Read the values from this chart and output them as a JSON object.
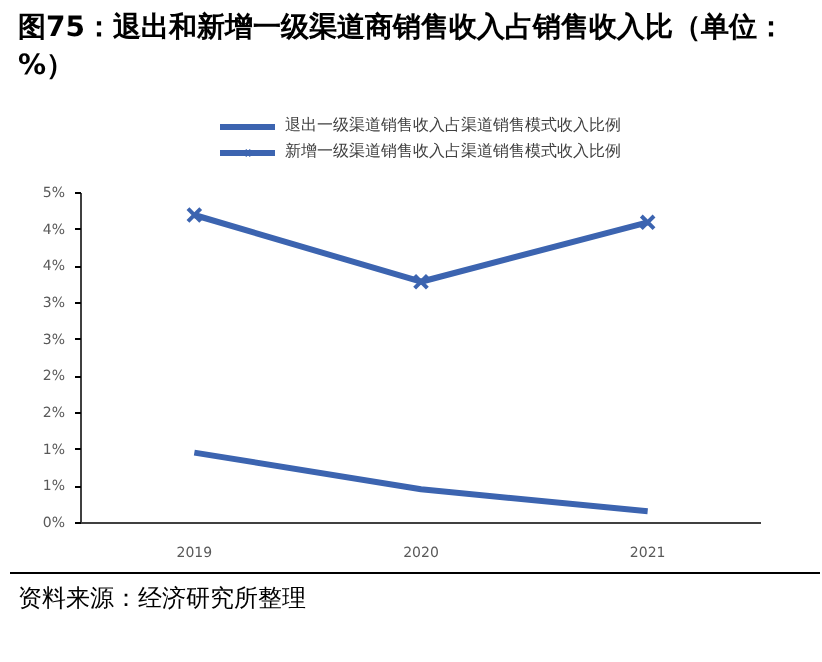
{
  "chart_data": {
    "type": "line",
    "title": "图75：退出和新增一级渠道商销售收入占销售收入比（单位：%）",
    "categories": [
      "2019",
      "2020",
      "2021"
    ],
    "series": [
      {
        "name": "退出一级渠道销售收入占渠道销售模式收入比例",
        "color": "#3c64b0",
        "values": [
          0.96,
          0.46,
          0.16
        ],
        "marker": "none"
      },
      {
        "name": "新增一级渠道销售收入占渠道销售模式收入比例",
        "color": "#3c64b0",
        "values": [
          4.2,
          3.29,
          4.1
        ],
        "marker": "cross"
      }
    ],
    "ylim": [
      0,
      4.5
    ],
    "yticks": [
      {
        "value": 0,
        "label": "0%"
      },
      {
        "value": 0.5,
        "label": "1%"
      },
      {
        "value": 1,
        "label": "1%"
      },
      {
        "value": 1.5,
        "label": "2%"
      },
      {
        "value": 2,
        "label": "2%"
      },
      {
        "value": 2.5,
        "label": "3%"
      },
      {
        "value": 3,
        "label": "3%"
      },
      {
        "value": 3.5,
        "label": "4%"
      },
      {
        "value": 4,
        "label": "4%"
      },
      {
        "value": 4.5,
        "label": "5%"
      }
    ],
    "grid": false,
    "legend": "top",
    "annotations": [
      "资料来源：经济研究所整理"
    ]
  }
}
